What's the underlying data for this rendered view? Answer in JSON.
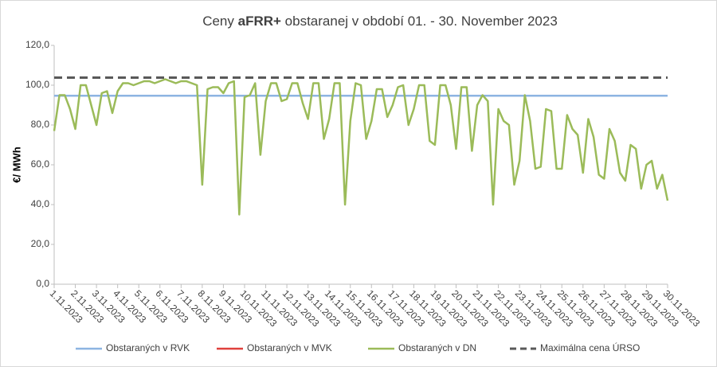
{
  "chart_data": {
    "type": "line",
    "title": [
      "Ceny ",
      "aFRR+",
      " obstaranej v období 01. - 30. November 2023"
    ],
    "ylabel": "€/ MWh",
    "categories": [
      "1.11.2023",
      null,
      null,
      null,
      "2.11.2023",
      null,
      null,
      null,
      "3.11.2023",
      null,
      null,
      null,
      "4.11.2023",
      null,
      null,
      null,
      "5.11.2023",
      null,
      null,
      null,
      "6.11.2023",
      null,
      null,
      null,
      "7.11.2023",
      null,
      null,
      null,
      "8.11.2023",
      null,
      null,
      null,
      "9.11.2023",
      null,
      null,
      null,
      "10.11.2023",
      null,
      null,
      null,
      "11.11.2023",
      null,
      null,
      null,
      "12.11.2023",
      null,
      null,
      null,
      "13.11.2023",
      null,
      null,
      null,
      "14.11.2023",
      null,
      null,
      null,
      "15.11.2023",
      null,
      null,
      null,
      "16.11.2023",
      null,
      null,
      null,
      "17.11.2023",
      null,
      null,
      null,
      "18.11.2023",
      null,
      null,
      null,
      "19.11.2023",
      null,
      null,
      null,
      "20.11.2023",
      null,
      null,
      null,
      "21.11.2023",
      null,
      null,
      null,
      "22.11.2023",
      null,
      null,
      null,
      "23.11.2023",
      null,
      null,
      null,
      "24.11.2023",
      null,
      null,
      null,
      "25.11.2023",
      null,
      null,
      null,
      "26.11.2023",
      null,
      null,
      null,
      "27.11.2023",
      null,
      null,
      null,
      "28.11.2023",
      null,
      null,
      null,
      "29.11.2023",
      null,
      null,
      null,
      "30.11.2023"
    ],
    "ylim": [
      0,
      120
    ],
    "yticks": [
      {
        "value": 0,
        "label": "0,0"
      },
      {
        "value": 20,
        "label": "20,0"
      },
      {
        "value": 40,
        "label": "40,0"
      },
      {
        "value": 60,
        "label": "60,0"
      },
      {
        "value": 80,
        "label": "80,0"
      },
      {
        "value": 100,
        "label": "100,0"
      },
      {
        "value": 120,
        "label": "120,0"
      }
    ],
    "series": [
      {
        "name": "Obstaraných v RVK",
        "color": "#8db4e2",
        "values": [
          94.7,
          94.7,
          94.7,
          94.7,
          94.7,
          94.7,
          94.7,
          94.7,
          94.7,
          94.7,
          94.7,
          94.7,
          94.7,
          94.7,
          94.7,
          94.7,
          94.7,
          94.7,
          94.7,
          94.7,
          94.7,
          94.7,
          94.7,
          94.7,
          94.7,
          94.7,
          94.7,
          94.7,
          94.7,
          94.7,
          94.7,
          94.7,
          94.7,
          94.7,
          94.7,
          94.7,
          94.7,
          94.7,
          94.7,
          94.7,
          94.7,
          94.7,
          94.7,
          94.7,
          94.7,
          94.7,
          94.7,
          94.7,
          94.7,
          94.7,
          94.7,
          94.7,
          94.7,
          94.7,
          94.7,
          94.7,
          94.7,
          94.7,
          94.7,
          94.7,
          94.7,
          94.7,
          94.7,
          94.7,
          94.7,
          94.7,
          94.7,
          94.7,
          94.7,
          94.7,
          94.7,
          94.7,
          94.7,
          94.7,
          94.7,
          94.7,
          94.7,
          94.7,
          94.7,
          94.7,
          94.7,
          94.7,
          94.7,
          94.7,
          94.7,
          94.7,
          94.7,
          94.7,
          94.7,
          94.7,
          94.7,
          94.7,
          94.7,
          94.7,
          94.7,
          94.7,
          94.7,
          94.7,
          94.7,
          94.7,
          94.7,
          94.7,
          94.7,
          94.7,
          94.7,
          94.7,
          94.7,
          94.7,
          94.7,
          94.7,
          94.7,
          94.7,
          94.7,
          94.7,
          94.7,
          94.7,
          94.7
        ]
      },
      {
        "name": "Obstaraných v MVK",
        "color": "#e0403c",
        "values": [
          null,
          null,
          null,
          null,
          null,
          null,
          null,
          null,
          null,
          null,
          null,
          null,
          null,
          null,
          null,
          null,
          null,
          null,
          null,
          null,
          null,
          null,
          null,
          null,
          null,
          null,
          null,
          null,
          null,
          null,
          null,
          null,
          null,
          null,
          null,
          null,
          null,
          null,
          null,
          null,
          null,
          null,
          null,
          null,
          null,
          null,
          null,
          null,
          null,
          null,
          null,
          null,
          null,
          null,
          null,
          null,
          null,
          null,
          null,
          null,
          null,
          null,
          null,
          null,
          null,
          null,
          null,
          null,
          null,
          null,
          null,
          null,
          null,
          null,
          null,
          null,
          null,
          null,
          null,
          null,
          null,
          null,
          null,
          null,
          null,
          null,
          null,
          null,
          null,
          null,
          null,
          null,
          null,
          null,
          null,
          null,
          null,
          null,
          null,
          null,
          null,
          null,
          null,
          null,
          null,
          null,
          null,
          null,
          null,
          null,
          null,
          null,
          null,
          null,
          null,
          null,
          null
        ]
      },
      {
        "name": "Obstaraných v DN",
        "color": "#9bbb59",
        "values": [
          77,
          95,
          95,
          88,
          78,
          100,
          100,
          90,
          80,
          96,
          97,
          86,
          97,
          101,
          101,
          100,
          101,
          102,
          102,
          101,
          102,
          103,
          102,
          101,
          102,
          102,
          101,
          100,
          50,
          98,
          99,
          99,
          96,
          101,
          102,
          35,
          94,
          95,
          101,
          65,
          92,
          101,
          101,
          92,
          93,
          101,
          101,
          91,
          83,
          101,
          101,
          73,
          83,
          101,
          101,
          40,
          82,
          101,
          100,
          73,
          82,
          98,
          98,
          84,
          90,
          99,
          100,
          80,
          88,
          100,
          100,
          72,
          70,
          100,
          100,
          90,
          68,
          99,
          99,
          67,
          90,
          95,
          92,
          40,
          88,
          82,
          80,
          50,
          62,
          95,
          82,
          58,
          59,
          88,
          87,
          58,
          58,
          85,
          78,
          75,
          56,
          83,
          74,
          55,
          53,
          78,
          72,
          56,
          52,
          70,
          68,
          48,
          60,
          62,
          48,
          55,
          42
        ]
      },
      {
        "name": "Maximálna cena ÚRSO",
        "color": "#595959",
        "dashed": true,
        "values": [
          103.8,
          103.8,
          103.8,
          103.8,
          103.8,
          103.8,
          103.8,
          103.8,
          103.8,
          103.8,
          103.8,
          103.8,
          103.8,
          103.8,
          103.8,
          103.8,
          103.8,
          103.8,
          103.8,
          103.8,
          103.8,
          103.8,
          103.8,
          103.8,
          103.8,
          103.8,
          103.8,
          103.8,
          103.8,
          103.8,
          103.8,
          103.8,
          103.8,
          103.8,
          103.8,
          103.8,
          103.8,
          103.8,
          103.8,
          103.8,
          103.8,
          103.8,
          103.8,
          103.8,
          103.8,
          103.8,
          103.8,
          103.8,
          103.8,
          103.8,
          103.8,
          103.8,
          103.8,
          103.8,
          103.8,
          103.8,
          103.8,
          103.8,
          103.8,
          103.8,
          103.8,
          103.8,
          103.8,
          103.8,
          103.8,
          103.8,
          103.8,
          103.8,
          103.8,
          103.8,
          103.8,
          103.8,
          103.8,
          103.8,
          103.8,
          103.8,
          103.8,
          103.8,
          103.8,
          103.8,
          103.8,
          103.8,
          103.8,
          103.8,
          103.8,
          103.8,
          103.8,
          103.8,
          103.8,
          103.8,
          103.8,
          103.8,
          103.8,
          103.8,
          103.8,
          103.8,
          103.8,
          103.8,
          103.8,
          103.8,
          103.8,
          103.8,
          103.8,
          103.8,
          103.8,
          103.8,
          103.8,
          103.8,
          103.8,
          103.8,
          103.8,
          103.8,
          103.8,
          103.8,
          103.8,
          103.8,
          103.8
        ]
      }
    ]
  }
}
